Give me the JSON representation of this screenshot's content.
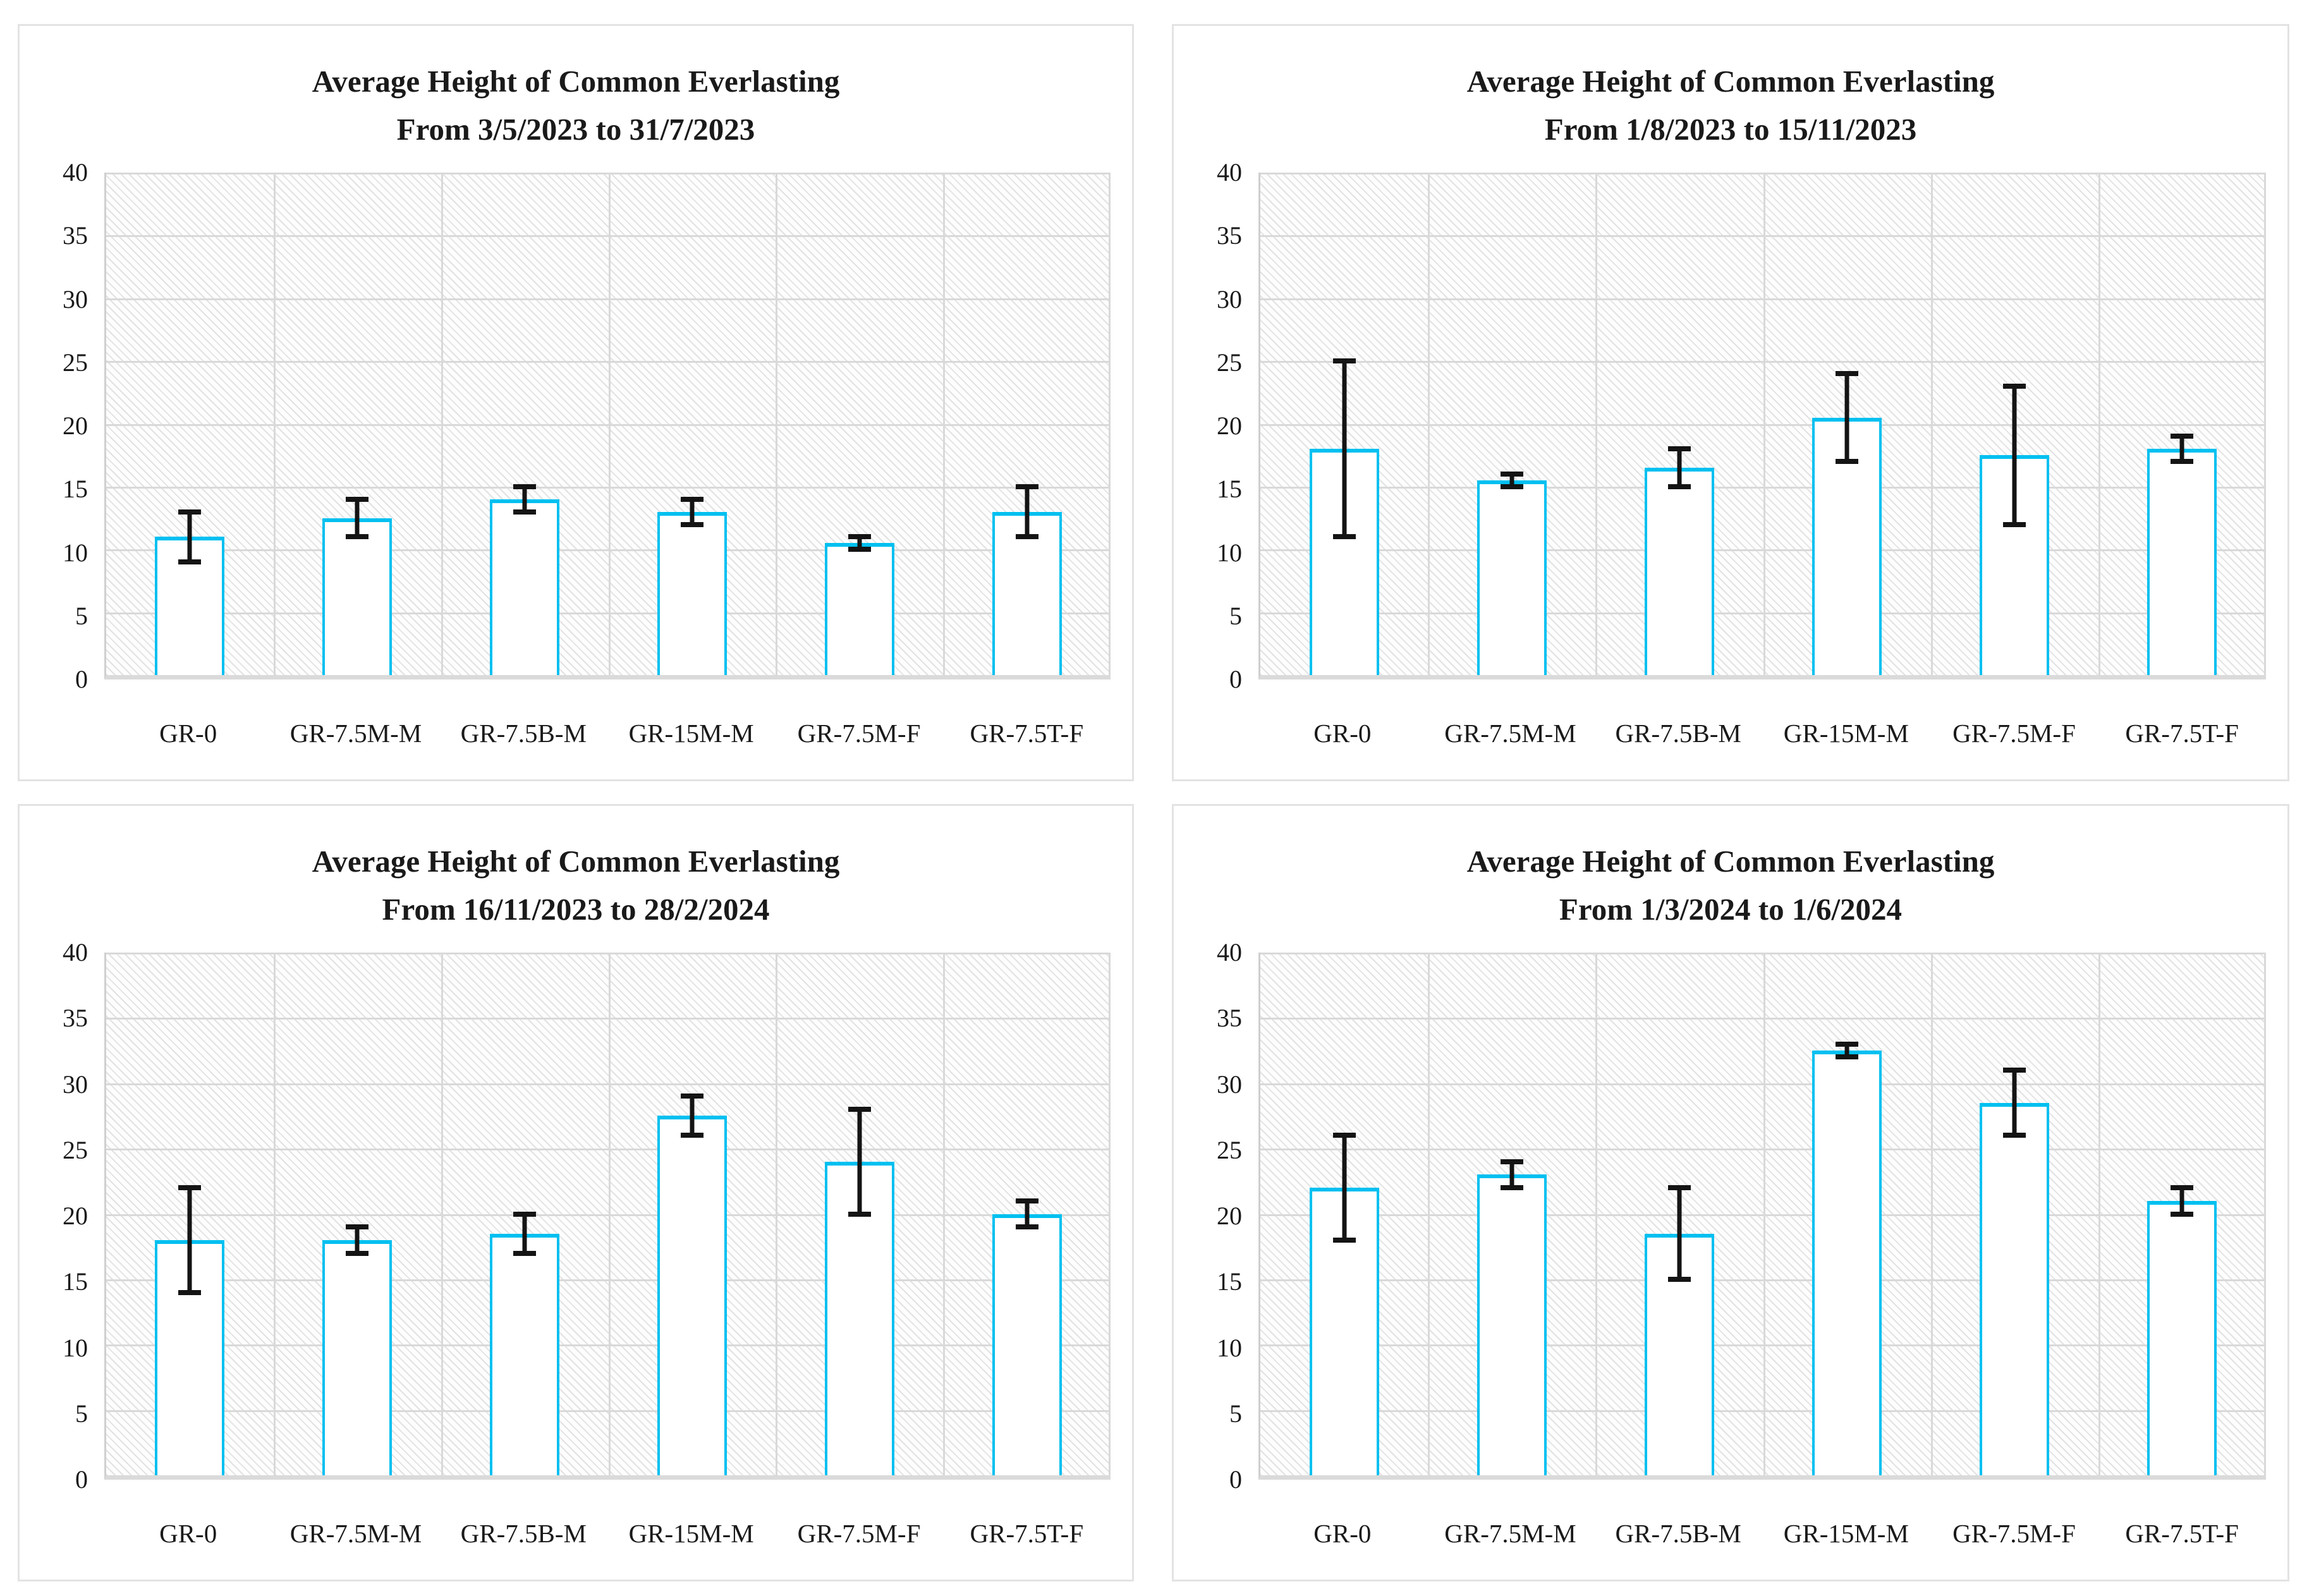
{
  "colors": {
    "bar_fill": "#ffffff",
    "bar_border": "#00c0f0",
    "error_bar": "#141414",
    "gridline": "#d9d9d9",
    "axis_line": "#cfcfcf",
    "panel_border": "#e3e3e3",
    "hatch_stroke": "#828282",
    "text": "#1a1a1a"
  },
  "chart_data": [
    {
      "type": "bar",
      "title": "Average Height of Common Everlasting",
      "subtitle": "From 3/5/2023 to 31/7/2023",
      "categories": [
        "GR-0",
        "GR-7.5M-M",
        "GR-7.5B-M",
        "GR-15M-M",
        "GR-7.5M-F",
        "GR-7.5T-F"
      ],
      "values": [
        11,
        12.5,
        14,
        13,
        10.5,
        13
      ],
      "error_low": [
        9,
        11,
        13,
        12,
        10,
        11
      ],
      "error_high": [
        13,
        14,
        15,
        14,
        11,
        15
      ],
      "ylim": [
        0,
        40
      ],
      "y_ticks": [
        0,
        5,
        10,
        15,
        20,
        25,
        30,
        35,
        40
      ],
      "xlabel": "",
      "ylabel": "",
      "grid": true,
      "legend": "none"
    },
    {
      "type": "bar",
      "title": "Average Height of Common Everlasting",
      "subtitle": "From 1/8/2023 to 15/11/2023",
      "categories": [
        "GR-0",
        "GR-7.5M-M",
        "GR-7.5B-M",
        "GR-15M-M",
        "GR-7.5M-F",
        "GR-7.5T-F"
      ],
      "values": [
        18,
        15.5,
        16.5,
        20.5,
        17.5,
        18
      ],
      "error_low": [
        11,
        15,
        15,
        17,
        12,
        17
      ],
      "error_high": [
        25,
        16,
        18,
        24,
        23,
        19
      ],
      "ylim": [
        0,
        40
      ],
      "y_ticks": [
        0,
        5,
        10,
        15,
        20,
        25,
        30,
        35,
        40
      ],
      "xlabel": "",
      "ylabel": "",
      "grid": true,
      "legend": "none"
    },
    {
      "type": "bar",
      "title": "Average Height of Common Everlasting",
      "subtitle": "From 16/11/2023 to 28/2/2024",
      "categories": [
        "GR-0",
        "GR-7.5M-M",
        "GR-7.5B-M",
        "GR-15M-M",
        "GR-7.5M-F",
        "GR-7.5T-F"
      ],
      "values": [
        18,
        18,
        18.5,
        27.5,
        24,
        20
      ],
      "error_low": [
        14,
        17,
        17,
        26,
        20,
        19
      ],
      "error_high": [
        22,
        19,
        20,
        29,
        28,
        21
      ],
      "ylim": [
        0,
        40
      ],
      "y_ticks": [
        0,
        5,
        10,
        15,
        20,
        25,
        30,
        35,
        40
      ],
      "xlabel": "",
      "ylabel": "",
      "grid": true,
      "legend": "none"
    },
    {
      "type": "bar",
      "title": "Average Height of Common Everlasting",
      "subtitle": "From 1/3/2024 to 1/6/2024",
      "categories": [
        "GR-0",
        "GR-7.5M-M",
        "GR-7.5B-M",
        "GR-15M-M",
        "GR-7.5M-F",
        "GR-7.5T-F"
      ],
      "values": [
        22,
        23,
        18.5,
        32.5,
        28.5,
        21
      ],
      "error_low": [
        18,
        22,
        15,
        32,
        26,
        20
      ],
      "error_high": [
        26,
        24,
        22,
        33,
        31,
        22
      ],
      "ylim": [
        0,
        40
      ],
      "y_ticks": [
        0,
        5,
        10,
        15,
        20,
        25,
        30,
        35,
        40
      ],
      "xlabel": "",
      "ylabel": "",
      "grid": true,
      "legend": "none"
    }
  ]
}
